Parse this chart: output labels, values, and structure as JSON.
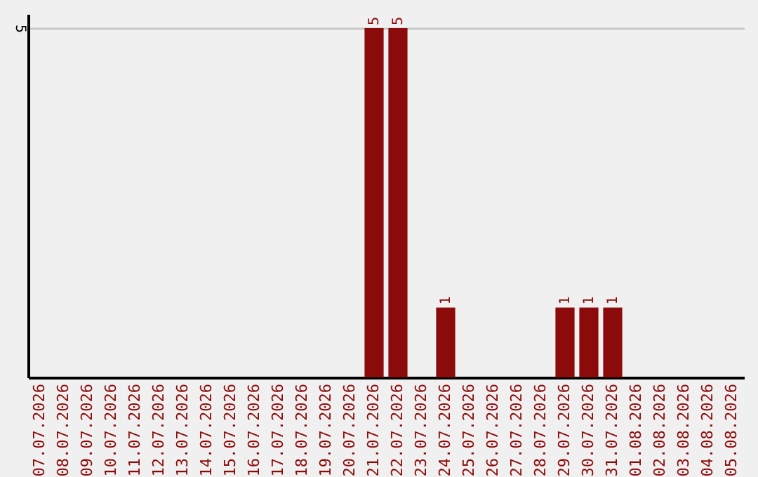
{
  "chart_data": {
    "type": "bar",
    "categories": [
      "07.07.2026",
      "08.07.2026",
      "09.07.2026",
      "10.07.2026",
      "11.07.2026",
      "12.07.2026",
      "13.07.2026",
      "14.07.2026",
      "15.07.2026",
      "16.07.2026",
      "17.07.2026",
      "18.07.2026",
      "19.07.2026",
      "20.07.2026",
      "21.07.2026",
      "22.07.2026",
      "23.07.2026",
      "24.07.2026",
      "25.07.2026",
      "26.07.2026",
      "27.07.2026",
      "28.07.2026",
      "29.07.2026",
      "30.07.2026",
      "31.07.2026",
      "01.08.2026",
      "02.08.2026",
      "03.08.2026",
      "04.08.2026",
      "05.08.2026"
    ],
    "values": [
      null,
      null,
      null,
      null,
      null,
      null,
      null,
      null,
      null,
      null,
      null,
      null,
      null,
      null,
      5,
      5,
      null,
      1,
      null,
      null,
      null,
      null,
      1,
      1,
      1,
      null,
      null,
      null,
      null,
      null
    ],
    "value_labels": [
      null,
      null,
      null,
      null,
      null,
      null,
      null,
      null,
      null,
      null,
      null,
      null,
      null,
      null,
      "5",
      "5",
      null,
      "1",
      null,
      null,
      null,
      null,
      "1",
      "1",
      "1",
      null,
      null,
      null,
      null,
      null
    ],
    "color": "#8b0a0a",
    "ylim": [
      0,
      5.2
    ],
    "yticks": [
      5
    ],
    "grid": "y"
  }
}
